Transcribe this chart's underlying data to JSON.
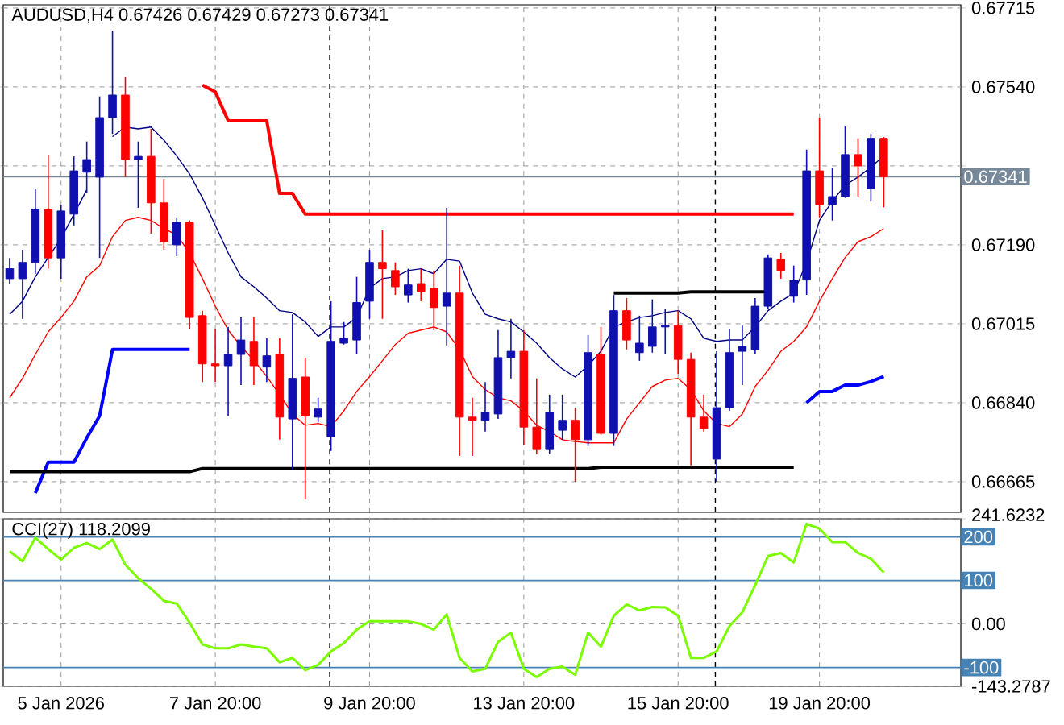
{
  "chart_data": [
    {
      "type": "candlestick",
      "title": "AUDUSD,H4 0.67426 0.67429 0.67273 0.67341",
      "categories": [
        null,
        null,
        null,
        null,
        null,
        null,
        null,
        null,
        null,
        null,
        null,
        null,
        null,
        null,
        null,
        null,
        null,
        null,
        null,
        null,
        null,
        null,
        null,
        null,
        null,
        null,
        null,
        null,
        null,
        null,
        null,
        null,
        null,
        null,
        null,
        null,
        null,
        null,
        null,
        null,
        null,
        null,
        null,
        null,
        null,
        null,
        null,
        null,
        null,
        null,
        null,
        null,
        null,
        null,
        null,
        null,
        null,
        null,
        null,
        null,
        null,
        null,
        null,
        null,
        null,
        null,
        null,
        null,
        null
      ],
      "ohlc": [
        [
          0.67115,
          0.67161,
          0.67104,
          0.67137
        ],
        [
          0.67115,
          0.67179,
          0.67026,
          0.67151
        ],
        [
          0.67151,
          0.67315,
          0.67126,
          0.67269
        ],
        [
          0.67269,
          0.6739,
          0.67137,
          0.67161
        ],
        [
          0.67161,
          0.67279,
          0.67115,
          0.67265
        ],
        [
          0.67258,
          0.67386,
          0.67233,
          0.67354
        ],
        [
          0.67351,
          0.67419,
          0.67304,
          0.67379
        ],
        [
          0.6734,
          0.67519,
          0.67161,
          0.67472
        ],
        [
          0.67472,
          0.67665,
          0.67436,
          0.67522
        ],
        [
          0.67522,
          0.67562,
          0.6734,
          0.67379
        ],
        [
          0.67379,
          0.67419,
          0.67272,
          0.67386
        ],
        [
          0.67386,
          0.67447,
          0.67215,
          0.67283
        ],
        [
          0.67283,
          0.67336,
          0.67179,
          0.67197
        ],
        [
          0.6719,
          0.67251,
          0.67165,
          0.6724
        ],
        [
          0.6724,
          0.67244,
          0.67004,
          0.67029
        ],
        [
          0.67033,
          0.67044,
          0.66886,
          0.66926
        ],
        [
          0.66926,
          0.67004,
          0.66886,
          0.66922
        ],
        [
          0.66922,
          0.67008,
          0.66811,
          0.66947
        ],
        [
          0.66947,
          0.67029,
          0.66879,
          0.66979
        ],
        [
          0.66976,
          0.67029,
          0.66879,
          0.66922
        ],
        [
          0.66919,
          0.66983,
          0.66886,
          0.66944
        ],
        [
          0.66947,
          0.66983,
          0.66758,
          0.66808
        ],
        [
          0.66804,
          0.67036,
          0.6669,
          0.66894
        ],
        [
          0.66897,
          0.6694,
          0.66626,
          0.66811
        ],
        [
          0.66808,
          0.66851,
          0.66797,
          0.66826
        ],
        [
          0.66765,
          0.67065,
          0.66733,
          0.66976
        ],
        [
          0.66972,
          0.67019,
          0.66969,
          0.66983
        ],
        [
          0.66979,
          0.67119,
          0.66947,
          0.67062
        ],
        [
          0.67065,
          0.67179,
          0.67026,
          0.67151
        ],
        [
          0.67151,
          0.67222,
          0.67026,
          0.67137
        ],
        [
          0.67133,
          0.67151,
          0.67079,
          0.67097
        ],
        [
          0.67079,
          0.67137,
          0.67062,
          0.67101
        ],
        [
          0.67104,
          0.67137,
          0.67065,
          0.67086
        ],
        [
          0.67094,
          0.67133,
          0.67001,
          0.67051
        ],
        [
          0.67054,
          0.67272,
          0.66965,
          0.67083
        ],
        [
          0.67083,
          0.67144,
          0.66722,
          0.66808
        ],
        [
          0.66808,
          0.66851,
          0.66722,
          0.66801
        ],
        [
          0.66801,
          0.66886,
          0.66776,
          0.66819
        ],
        [
          0.66815,
          0.67001,
          0.66804,
          0.6694
        ],
        [
          0.6694,
          0.67026,
          0.66894,
          0.66954
        ],
        [
          0.66954,
          0.67001,
          0.66747,
          0.66786
        ],
        [
          0.66786,
          0.66894,
          0.66726,
          0.66736
        ],
        [
          0.66736,
          0.66858,
          0.66726,
          0.66819
        ],
        [
          0.66779,
          0.66858,
          0.66758,
          0.66801
        ],
        [
          0.66801,
          0.66829,
          0.66665,
          0.66758
        ],
        [
          0.66758,
          0.6699,
          0.66744,
          0.66951
        ],
        [
          0.66947,
          0.67008,
          0.66769,
          0.66772
        ],
        [
          0.66772,
          0.67079,
          0.66744,
          0.67044
        ],
        [
          0.67044,
          0.67072,
          0.66958,
          0.66979
        ],
        [
          0.66951,
          0.67033,
          0.66933,
          0.66972
        ],
        [
          0.66965,
          0.67069,
          0.66951,
          0.67008
        ],
        [
          0.67008,
          0.67047,
          0.66947,
          0.67011
        ],
        [
          0.67011,
          0.67044,
          0.66904,
          0.66936
        ],
        [
          0.66936,
          0.66951,
          0.66701,
          0.66808
        ],
        [
          0.66808,
          0.66858,
          0.66776,
          0.66783
        ],
        [
          0.66715,
          0.66954,
          0.66665,
          0.66829
        ],
        [
          0.66829,
          0.67004,
          0.66822,
          0.66951
        ],
        [
          0.66954,
          0.67011,
          0.66879,
          0.66965
        ],
        [
          0.66958,
          0.67072,
          0.66947,
          0.67054
        ],
        [
          0.67054,
          0.67169,
          0.67047,
          0.67161
        ],
        [
          0.67158,
          0.67172,
          0.67115,
          0.67133
        ],
        [
          0.67076,
          0.67144,
          0.67062,
          0.67112
        ],
        [
          0.67112,
          0.67401,
          0.67079,
          0.67354
        ],
        [
          0.67354,
          0.67472,
          0.67251,
          0.67279
        ],
        [
          0.67279,
          0.67361,
          0.67244,
          0.67297
        ],
        [
          0.67297,
          0.67454,
          0.67294,
          0.6739
        ],
        [
          0.6739,
          0.67426,
          0.67297,
          0.67365
        ],
        [
          0.67315,
          0.67436,
          0.67286,
          0.67426
        ],
        [
          0.67426,
          0.67429,
          0.67273,
          0.67341
        ]
      ],
      "colors": [
        "#1010b0",
        "#1010b0",
        "#1010b0",
        "#ff0000",
        "#1010b0",
        "#1010b0",
        "#1010b0",
        "#1010b0",
        "#1010b0",
        "#ff0000",
        "#1010b0",
        "#ff0000",
        "#ff0000",
        "#1010b0",
        "#ff0000",
        "#ff0000",
        "#ff0000",
        "#1010b0",
        "#1010b0",
        "#ff0000",
        "#1010b0",
        "#ff0000",
        "#1010b0",
        "#ff0000",
        "#1010b0",
        "#1010b0",
        "#1010b0",
        "#1010b0",
        "#1010b0",
        "#ff0000",
        "#ff0000",
        "#1010b0",
        "#ff0000",
        "#ff0000",
        "#1010b0",
        "#ff0000",
        "#ff0000",
        "#1010b0",
        "#1010b0",
        "#1010b0",
        "#ff0000",
        "#ff0000",
        "#1010b0",
        "#1010b0",
        "#ff0000",
        "#1010b0",
        "#ff0000",
        "#1010b0",
        "#ff0000",
        "#1010b0",
        "#1010b0",
        "#1010b0",
        "#ff0000",
        "#ff0000",
        "#ff0000",
        "#1010b0",
        "#1010b0",
        "#1010b0",
        "#1010b0",
        "#1010b0",
        "#ff0000",
        "#1010b0",
        "#1010b0",
        "#ff0000",
        "#1010b0",
        "#1010b0",
        "#ff0000",
        "#1010b0",
        "#ff0000"
      ],
      "series": [
        {
          "type": "line",
          "color": "#000080",
          "values": [
            0.67036,
            0.67065,
            0.67119,
            0.67162,
            0.67204,
            0.67258,
            0.67312,
            null,
            0.6743,
            0.67451,
            0.67447,
            0.67451,
            0.67422,
            0.67387,
            0.67347,
            0.67294,
            0.67233,
            0.67172,
            0.67119,
            0.67097,
            0.67072,
            0.67044,
            0.6704,
            0.67019,
            0.66987,
            0.67008,
            0.67008,
            0.67029,
            0.67094,
            0.67115,
            0.67119,
            0.67133,
            0.67137,
            0.67126,
            0.67158,
            0.67154,
            0.67083,
            0.67036,
            0.67026,
            0.67019,
            0.66997,
            0.66972,
            0.6694,
            0.66915,
            0.66897,
            0.66922,
            0.66954,
            0.67008,
            0.67019,
            0.67029,
            0.67033,
            0.6704,
            0.67044,
            0.67026,
            0.66983,
            0.66976,
            0.66979,
            0.66979,
            0.67008,
            0.67044,
            0.67065,
            0.67083,
            0.67151,
            0.67244,
            0.67287,
            0.67322,
            0.6734,
            0.67362,
            0.67387
          ]
        },
        {
          "type": "line",
          "color": "#ff0000",
          "values": [
            0.66851,
            0.66894,
            0.66947,
            0.66997,
            0.67029,
            0.67065,
            0.67119,
            0.67144,
            0.67208,
            0.67244,
            0.67251,
            0.67244,
            0.67226,
            0.67212,
            0.67172,
            0.67115,
            0.67054,
            0.67001,
            0.66965,
            0.66934,
            0.66898,
            0.66858,
            0.66815,
            0.6679,
            0.66794,
            0.66787,
            0.66822,
            0.66865,
            0.66898,
            0.66933,
            0.66969,
            0.66994,
            0.67001,
            0.67008,
            0.66997,
            0.66958,
            0.66898,
            0.66869,
            0.66851,
            0.66844,
            0.66822,
            0.6679,
            0.66776,
            0.66758,
            0.66754,
            0.66751,
            0.66751,
            0.66751,
            0.66804,
            0.6684,
            0.66876,
            0.6689,
            0.66894,
            0.66869,
            0.66822,
            0.66794,
            0.66787,
            0.66815,
            0.66876,
            0.66912,
            0.66954,
            0.66976,
            0.67008,
            0.67065,
            0.67115,
            0.67162,
            0.67197,
            0.67208,
            0.67226
          ]
        },
        {
          "type": "line",
          "color": "#ff0000",
          "values": [
            null,
            null,
            null,
            null,
            null,
            null,
            null,
            null,
            null,
            null,
            null,
            null,
            null,
            null,
            null,
            0.67544,
            0.67529,
            0.67465,
            0.67465,
            0.67465,
            0.67465,
            0.67304,
            0.67304,
            0.67258,
            0.67258,
            0.67258,
            0.67258,
            0.67258,
            0.67258,
            0.67258,
            0.67258,
            0.67258,
            0.67258,
            0.67258,
            0.67258,
            0.67258,
            0.67258,
            0.67258,
            0.67258,
            0.67258,
            0.67258,
            0.67258,
            0.67258,
            0.67258,
            0.67258,
            0.67258,
            0.67258,
            0.67258,
            0.67258,
            0.67258,
            0.67258,
            0.67258,
            0.67258,
            0.67258,
            0.67258,
            0.67258,
            0.67258,
            0.67258,
            0.67258,
            0.67258,
            0.67258,
            0.67258,
            null,
            null,
            null,
            null,
            null,
            null,
            null
          ]
        },
        {
          "type": "line",
          "color": "#0000ff",
          "values": [
            null,
            null,
            0.6664,
            0.66708,
            0.66708,
            0.66708,
            0.66762,
            0.66811,
            0.66958,
            0.66958,
            0.66958,
            0.66958,
            0.66958,
            0.66958,
            0.66958,
            null,
            null,
            null,
            null,
            null,
            null,
            null,
            null,
            null,
            null,
            null,
            null,
            null,
            null,
            null,
            null,
            null,
            null,
            null,
            null,
            null,
            null,
            null,
            null,
            null,
            null,
            null,
            null,
            null,
            null,
            null,
            null,
            null,
            null,
            null,
            null,
            null,
            null,
            null,
            null,
            null,
            null,
            null,
            null,
            null,
            null,
            null,
            0.6684,
            0.66865,
            0.66865,
            0.66879,
            0.66879,
            0.66887,
            0.66898
          ]
        },
        {
          "type": "line",
          "color": "#000000",
          "values": [
            0.66687,
            0.66687,
            0.66687,
            0.66687,
            0.66687,
            0.66687,
            0.66687,
            0.66687,
            0.66687,
            0.66687,
            0.66687,
            0.66687,
            0.66687,
            0.66687,
            0.66687,
            0.66694,
            0.66694,
            0.66694,
            0.66694,
            0.66694,
            0.66694,
            0.66694,
            0.66694,
            0.66694,
            0.66694,
            0.66694,
            0.66694,
            0.66694,
            0.66694,
            0.66694,
            0.66694,
            0.66694,
            0.66694,
            0.66694,
            0.66694,
            0.66694,
            0.66694,
            0.66694,
            0.66694,
            0.66694,
            0.66694,
            0.66694,
            0.66694,
            0.66694,
            0.66694,
            0.66694,
            0.66697,
            0.66697,
            0.66697,
            0.66697,
            0.66697,
            0.66697,
            0.66697,
            0.66697,
            0.66697,
            0.66697,
            0.66697,
            0.66697,
            0.66697,
            0.66697,
            0.66697,
            0.66697,
            null,
            null,
            null,
            null,
            null,
            null,
            null
          ]
        },
        {
          "type": "line",
          "color": "#000000",
          "values": [
            null,
            null,
            null,
            null,
            null,
            null,
            null,
            null,
            null,
            null,
            null,
            null,
            null,
            null,
            null,
            null,
            null,
            null,
            null,
            null,
            null,
            null,
            null,
            null,
            null,
            null,
            null,
            null,
            null,
            null,
            null,
            null,
            null,
            null,
            null,
            null,
            null,
            null,
            null,
            null,
            null,
            null,
            null,
            null,
            null,
            null,
            null,
            0.67083,
            0.67083,
            0.67083,
            0.67083,
            0.67083,
            0.67083,
            0.67086,
            0.67086,
            0.67086,
            0.67086,
            0.67086,
            0.67086,
            0.67086,
            null,
            null,
            null,
            null,
            null,
            null,
            null,
            null,
            null
          ]
        }
      ],
      "ylim": [
        0.66597,
        0.67722
      ],
      "yticks": [
        {
          "value": 0.67715,
          "label": "0.67715"
        },
        {
          "value": 0.6754,
          "label": "0.67540"
        },
        {
          "value": 0.67365,
          "label": null
        },
        {
          "value": 0.6719,
          "label": "0.67190"
        },
        {
          "value": 0.67015,
          "label": "0.67015"
        },
        {
          "value": 0.6684,
          "label": "0.66840"
        },
        {
          "value": 0.66665,
          "label": "0.66665"
        }
      ],
      "grid": true,
      "tick_labels": "y",
      "ref_lines": [
        {
          "axis": "y",
          "value": 0.67341,
          "label": "0.67341",
          "color": "#778899"
        }
      ]
    },
    {
      "type": "line",
      "title": "CCI(27) 118.2099",
      "categories": [
        null,
        null,
        null,
        null,
        "5 Jan 2026",
        null,
        null,
        null,
        null,
        null,
        null,
        null,
        null,
        null,
        null,
        null,
        "7 Jan 20:00",
        null,
        null,
        null,
        null,
        null,
        null,
        null,
        null,
        null,
        null,
        null,
        "9 Jan 20:00",
        null,
        null,
        null,
        null,
        null,
        null,
        null,
        null,
        null,
        null,
        null,
        "13 Jan 20:00",
        null,
        null,
        null,
        null,
        null,
        null,
        null,
        null,
        null,
        null,
        null,
        "15 Jan 20:00",
        null,
        null,
        null,
        null,
        null,
        null,
        null,
        null,
        null,
        null,
        "19 Jan 20:00",
        null,
        null,
        null,
        null,
        null
      ],
      "values": [
        167,
        144,
        198,
        172,
        148,
        175,
        186,
        172,
        194,
        136,
        105,
        81,
        53,
        47,
        3,
        -47,
        -56,
        -56,
        -47,
        -52,
        -56,
        -88,
        -78,
        -106,
        -94,
        -63,
        -44,
        -13,
        6,
        6,
        6,
        6,
        0,
        -13,
        22,
        -78,
        -109,
        -103,
        -41,
        -20,
        -103,
        -122,
        -103,
        -98,
        -117,
        -20,
        -52,
        19,
        45,
        31,
        39,
        38,
        19,
        -78,
        -78,
        -63,
        -5,
        27,
        89,
        156,
        163,
        141,
        230,
        219,
        188,
        188,
        163,
        150,
        118
      ],
      "color": "#7cfc00",
      "ylim": [
        -143.2787,
        241.6232
      ],
      "yticks": [
        241.6232,
        {
          "value": 0,
          "label": "0.00"
        },
        -143.2787
      ],
      "grid": true,
      "ref_lines": [
        {
          "axis": "y",
          "value": 200,
          "label": "200",
          "color": "#4682b4"
        },
        {
          "axis": "y",
          "value": 100,
          "label": "100",
          "color": "#4682b4"
        },
        {
          "axis": "y",
          "value": -100,
          "label": "-100",
          "color": "#4682b4"
        }
      ]
    }
  ]
}
